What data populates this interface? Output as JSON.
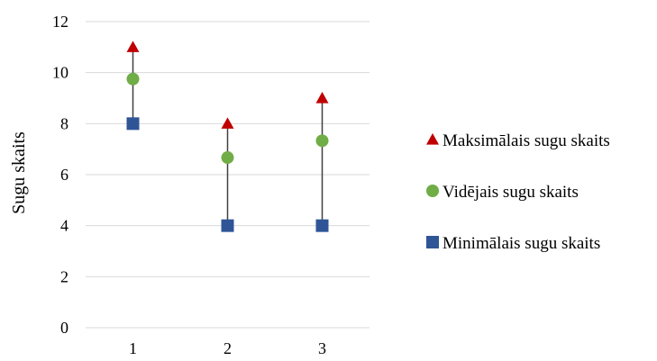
{
  "chart_data": {
    "type": "scatter",
    "ylabel": "Sugu skaits",
    "ylim": [
      0,
      12
    ],
    "y_ticks": [
      0,
      2,
      4,
      6,
      8,
      10,
      12
    ],
    "categories": [
      "1",
      "2",
      "3"
    ],
    "grid": true,
    "legend_position": "right",
    "series": [
      {
        "name": "Maksimālais sugu skaits",
        "marker": "triangle",
        "color": "#c00000",
        "values": [
          11,
          8,
          9
        ]
      },
      {
        "name": "Vidējais sugu skaits",
        "marker": "circle",
        "color": "#70ad47",
        "values": [
          9.75,
          6.67,
          7.33
        ]
      },
      {
        "name": "Minimālais sugu skaits",
        "marker": "square",
        "color": "#2f5597",
        "values": [
          8,
          4,
          4
        ]
      }
    ],
    "range_line_color": "#404040",
    "grid_color": "#d9d9d9"
  }
}
